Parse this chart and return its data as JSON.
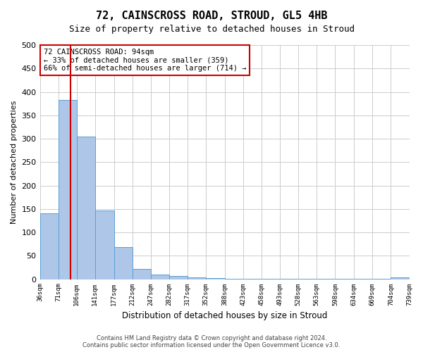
{
  "title": "72, CAINSCROSS ROAD, STROUD, GL5 4HB",
  "subtitle": "Size of property relative to detached houses in Stroud",
  "xlabel": "Distribution of detached houses by size in Stroud",
  "ylabel": "Number of detached properties",
  "bar_values": [
    140,
    383,
    305,
    147,
    69,
    22,
    10,
    7,
    4,
    2,
    1,
    1,
    1,
    1,
    1,
    1,
    1,
    1,
    1,
    4
  ],
  "bin_edges": [
    36,
    71,
    106,
    141,
    177,
    212,
    247,
    282,
    317,
    352,
    388,
    423,
    458,
    493,
    528,
    563,
    598,
    634,
    669,
    704,
    739
  ],
  "bar_color": "#aec6e8",
  "bar_edge_color": "#5a9fd4",
  "property_size": 94,
  "vline_color": "#cc0000",
  "annotation_text": "72 CAINSCROSS ROAD: 94sqm\n← 33% of detached houses are smaller (359)\n66% of semi-detached houses are larger (714) →",
  "annotation_box_color": "#ffffff",
  "annotation_box_edge_color": "#cc0000",
  "ylim": [
    0,
    500
  ],
  "yticks": [
    0,
    50,
    100,
    150,
    200,
    250,
    300,
    350,
    400,
    450,
    500
  ],
  "footer_text": "Contains HM Land Registry data © Crown copyright and database right 2024.\nContains public sector information licensed under the Open Government Licence v3.0.",
  "bg_color": "#ffffff",
  "grid_color": "#cccccc"
}
